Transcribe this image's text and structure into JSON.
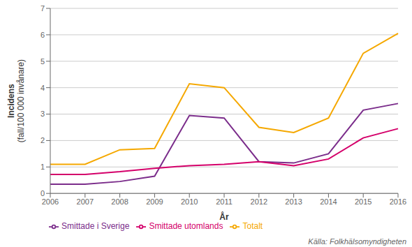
{
  "chart_data": {
    "type": "line",
    "x_label": "År",
    "y_label": "Incidens\n(fall/100 000 invånare)",
    "categories": [
      "2006",
      "2007",
      "2008",
      "2009",
      "2010",
      "2011",
      "2012",
      "2013",
      "2014",
      "2015",
      "2016"
    ],
    "series": [
      {
        "name": "Smittade i Sverige",
        "color": "#7B2D8B",
        "values": [
          0.35,
          0.35,
          0.45,
          0.65,
          2.95,
          2.85,
          1.2,
          1.15,
          1.5,
          3.15,
          3.4
        ]
      },
      {
        "name": "Smittade utomlands",
        "color": "#D4006A",
        "values": [
          0.72,
          0.72,
          0.82,
          0.95,
          1.05,
          1.1,
          1.2,
          1.05,
          1.3,
          2.1,
          2.45
        ]
      },
      {
        "name": "Totalt",
        "color": "#F5A800",
        "values": [
          1.1,
          1.1,
          1.65,
          1.7,
          4.15,
          4.0,
          2.5,
          2.3,
          2.85,
          5.3,
          6.05
        ]
      }
    ],
    "ylim": [
      0,
      7
    ],
    "yticks": [
      0,
      1,
      2,
      3,
      4,
      5,
      6,
      7
    ],
    "grid": true,
    "legend": "bottom",
    "annotations": [
      "Källa: Folkhälsomyndigheten"
    ]
  }
}
